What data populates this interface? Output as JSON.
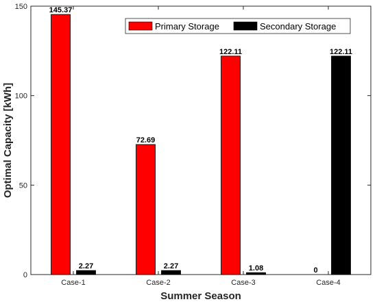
{
  "chart_data": {
    "type": "bar",
    "title": "",
    "xlabel": "Summer Season",
    "ylabel": "Optimal Capacity [kWh]",
    "categories": [
      "Case-1",
      "Case-2",
      "Case-3",
      "Case-4"
    ],
    "ylim": [
      0,
      150
    ],
    "yticks": [
      0,
      50,
      100,
      150
    ],
    "series": [
      {
        "name": "Primary Storage",
        "color": "#ff0000",
        "values": [
          145.37,
          72.69,
          122.11,
          0
        ],
        "labels": [
          "145.37",
          "72.69",
          "122.11",
          "0"
        ]
      },
      {
        "name": "Secondary Storage",
        "color": "#000000",
        "values": [
          2.27,
          2.27,
          1.08,
          122.11
        ],
        "labels": [
          "2.27",
          "2.27",
          "1.08",
          "122.11"
        ]
      }
    ],
    "legend_position": "top-right",
    "grid": false
  }
}
